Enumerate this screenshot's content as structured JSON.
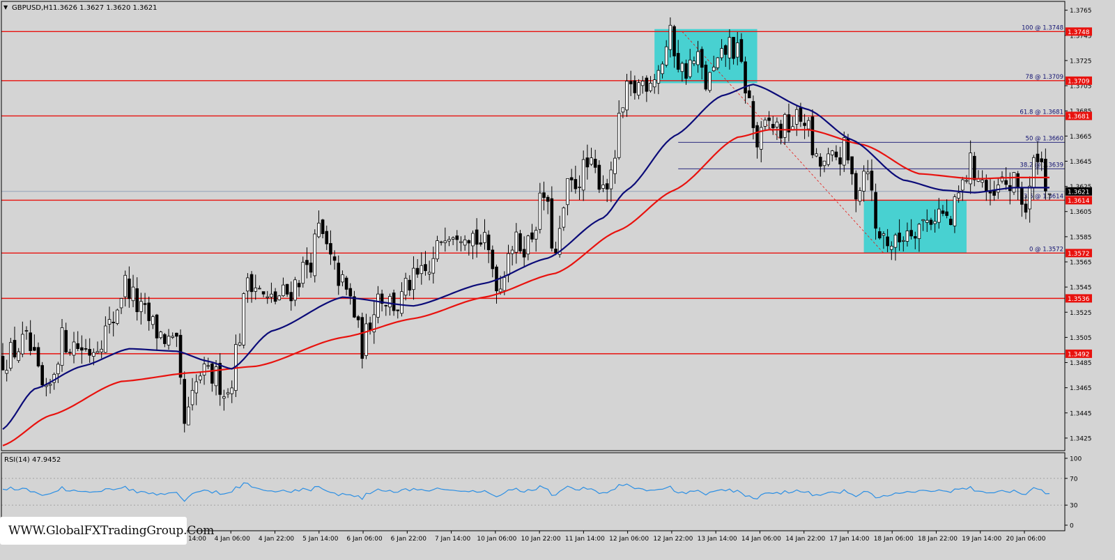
{
  "header": {
    "symbol_label": "GBPUSD,H1",
    "ohlc_label": "1.3626 1.3627 1.3620 1.3621"
  },
  "rsi": {
    "label": "RSI(14) 47.9452",
    "ticks": [
      "100",
      "70",
      "30",
      "0"
    ],
    "tick_values": [
      100,
      70,
      30,
      0
    ]
  },
  "watermark": "WWW.GlobalFXTradingGroup.Com",
  "colors": {
    "background": "#d4d4d4",
    "grid": "#b0b0b0",
    "bull_candle": "#ffffff",
    "bear_candle": "#000000",
    "ma_fast": "#0b0b78",
    "ma_slow": "#e8120e",
    "sr_line": "#e8120e",
    "fib_line": "#101070",
    "zone": "#48d1d1",
    "rsi_line": "#2b8fe4",
    "price_tag_bg": "#e8120e"
  },
  "chart_data": {
    "type": "candlestick",
    "title": "GBPUSD,H1",
    "ylim": [
      1.3415,
      1.3772
    ],
    "y_ticks": [
      "1.3765",
      "1.3745",
      "1.3725",
      "1.3705",
      "1.3685",
      "1.3665",
      "1.3645",
      "1.3625",
      "1.3605",
      "1.3585",
      "1.3565",
      "1.3545",
      "1.3525",
      "1.3505",
      "1.3485",
      "1.3465",
      "1.3445",
      "1.3425"
    ],
    "y_tick_values": [
      1.3765,
      1.3745,
      1.3725,
      1.3705,
      1.3685,
      1.3665,
      1.3645,
      1.3625,
      1.3605,
      1.3585,
      1.3565,
      1.3545,
      1.3525,
      1.3505,
      1.3485,
      1.3465,
      1.3445,
      1.3425
    ],
    "x_ticks": [
      "14:00",
      "4 Jan 06:00",
      "4 Jan 22:00",
      "5 Jan 14:00",
      "6 Jan 06:00",
      "6 Jan 22:00",
      "7 Jan 14:00",
      "10 Jan 06:00",
      "10 Jan 22:00",
      "11 Jan 14:00",
      "12 Jan 06:00",
      "12 Jan 22:00",
      "13 Jan 14:00",
      "14 Jan 06:00",
      "14 Jan 22:00",
      "17 Jan 14:00",
      "18 Jan 06:00",
      "18 Jan 22:00",
      "19 Jan 14:00",
      "20 Jan 06:00"
    ],
    "current_price": 1.3621,
    "current_price_label": "1.3621",
    "horizontal_levels": [
      {
        "value": 1.3748,
        "label": "1.3748"
      },
      {
        "value": 1.3709,
        "label": "1.3709"
      },
      {
        "value": 1.3681,
        "label": "1.3681"
      },
      {
        "value": 1.3614,
        "label": "1.3614"
      },
      {
        "value": 1.3572,
        "label": "1.3572"
      },
      {
        "value": 1.3536,
        "label": "1.3536"
      },
      {
        "value": 1.3492,
        "label": "1.3492"
      }
    ],
    "fibonacci_levels": [
      {
        "value": 1.3748,
        "label": "100 @ 1.3748"
      },
      {
        "value": 1.3709,
        "label": "78 @ 1.3709"
      },
      {
        "value": 1.3681,
        "label": "61.8 @ 1.3681"
      },
      {
        "value": 1.366,
        "label": "50 @ 1.3660"
      },
      {
        "value": 1.3639,
        "label": "38.2 @ 1.3639"
      },
      {
        "value": 1.3614,
        "label": "23.6 @ 1.3614"
      },
      {
        "value": 1.3572,
        "label": "0 @ 1.3572"
      }
    ],
    "zones": [
      {
        "start_bar": 165,
        "end_bar": 191,
        "y_low": 1.3707,
        "y_high": 1.375
      },
      {
        "start_bar": 218,
        "end_bar": 244,
        "y_low": 1.3572,
        "y_high": 1.3614
      }
    ],
    "ma_anchors_fast": [
      [
        0,
        1.3432
      ],
      [
        8,
        1.3464
      ],
      [
        20,
        1.3482
      ],
      [
        32,
        1.3496
      ],
      [
        44,
        1.3494
      ],
      [
        52,
        1.3486
      ],
      [
        58,
        1.348
      ],
      [
        68,
        1.351
      ],
      [
        86,
        1.3537
      ],
      [
        104,
        1.353
      ],
      [
        122,
        1.3548
      ],
      [
        138,
        1.3568
      ],
      [
        152,
        1.36
      ],
      [
        158,
        1.3622
      ],
      [
        170,
        1.3665
      ],
      [
        182,
        1.3697
      ],
      [
        190,
        1.3706
      ],
      [
        204,
        1.3686
      ],
      [
        215,
        1.3662
      ],
      [
        228,
        1.363
      ],
      [
        238,
        1.3622
      ],
      [
        246,
        1.362
      ],
      [
        256,
        1.3624
      ]
    ],
    "ma_anchors_slow": [
      [
        0,
        1.3419
      ],
      [
        12,
        1.3443
      ],
      [
        30,
        1.347
      ],
      [
        48,
        1.3477
      ],
      [
        64,
        1.3482
      ],
      [
        86,
        1.3505
      ],
      [
        104,
        1.352
      ],
      [
        122,
        1.3537
      ],
      [
        140,
        1.3556
      ],
      [
        156,
        1.359
      ],
      [
        170,
        1.3622
      ],
      [
        186,
        1.3664
      ],
      [
        194,
        1.367
      ],
      [
        204,
        1.367
      ],
      [
        218,
        1.3658
      ],
      [
        232,
        1.3635
      ],
      [
        246,
        1.3631
      ],
      [
        256,
        1.3632
      ]
    ],
    "price_anchors": [
      [
        0,
        1.3488
      ],
      [
        6,
        1.3501
      ],
      [
        11,
        1.3456
      ],
      [
        15,
        1.3503
      ],
      [
        22,
        1.3495
      ],
      [
        27,
        1.3513
      ],
      [
        31,
        1.3548
      ],
      [
        35,
        1.3525
      ],
      [
        40,
        1.3507
      ],
      [
        44,
        1.3495
      ],
      [
        46,
        1.3435
      ],
      [
        50,
        1.3475
      ],
      [
        54,
        1.3473
      ],
      [
        57,
        1.3461
      ],
      [
        60,
        1.3508
      ],
      [
        62,
        1.3555
      ],
      [
        67,
        1.3533
      ],
      [
        72,
        1.354
      ],
      [
        78,
        1.3567
      ],
      [
        80,
        1.359
      ],
      [
        84,
        1.3558
      ],
      [
        88,
        1.3535
      ],
      [
        91,
        1.3498
      ],
      [
        95,
        1.354
      ],
      [
        100,
        1.353
      ],
      [
        103,
        1.3548
      ],
      [
        108,
        1.3556
      ],
      [
        112,
        1.3592
      ],
      [
        117,
        1.3592
      ],
      [
        122,
        1.3578
      ],
      [
        126,
        1.3545
      ],
      [
        128,
        1.3578
      ],
      [
        133,
        1.358
      ],
      [
        137,
        1.3618
      ],
      [
        140,
        1.3568
      ],
      [
        143,
        1.3622
      ],
      [
        148,
        1.364
      ],
      [
        152,
        1.363
      ],
      [
        154,
        1.3628
      ],
      [
        156,
        1.3673
      ],
      [
        158,
        1.3698
      ],
      [
        163,
        1.371
      ],
      [
        166,
        1.3718
      ],
      [
        169,
        1.3743
      ],
      [
        172,
        1.3717
      ],
      [
        176,
        1.3725
      ],
      [
        178,
        1.3706
      ],
      [
        181,
        1.372
      ],
      [
        184,
        1.3738
      ],
      [
        186,
        1.373
      ],
      [
        188,
        1.3705
      ],
      [
        191,
        1.3658
      ],
      [
        194,
        1.3675
      ],
      [
        197,
        1.367
      ],
      [
        200,
        1.3676
      ],
      [
        203,
        1.368
      ],
      [
        206,
        1.3642
      ],
      [
        209,
        1.3643
      ],
      [
        213,
        1.3653
      ],
      [
        216,
        1.3622
      ],
      [
        219,
        1.3645
      ],
      [
        221,
        1.359
      ],
      [
        223,
        1.3585
      ],
      [
        226,
        1.3578
      ],
      [
        229,
        1.3592
      ],
      [
        233,
        1.3596
      ],
      [
        237,
        1.3605
      ],
      [
        240,
        1.3595
      ],
      [
        242,
        1.3618
      ],
      [
        245,
        1.3642
      ],
      [
        248,
        1.363
      ],
      [
        250,
        1.361
      ],
      [
        253,
        1.3627
      ],
      [
        257,
        1.3625
      ],
      [
        259,
        1.3606
      ],
      [
        262,
        1.3655
      ],
      [
        264,
        1.363
      ],
      [
        265,
        1.3621
      ]
    ],
    "bar_count": 266
  }
}
